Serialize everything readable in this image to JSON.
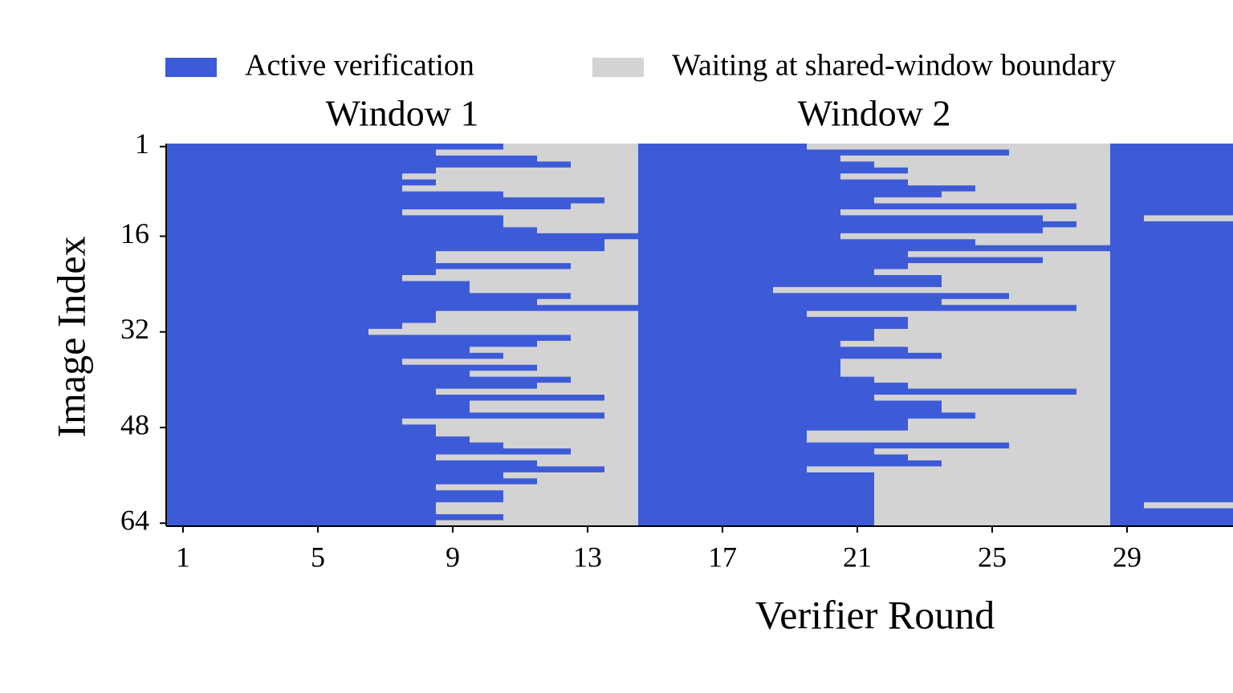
{
  "chart_data": {
    "type": "timeline",
    "xlabel": "Verifier Round",
    "ylabel": "Image Index",
    "xlim": [
      0.5,
      32.14
    ],
    "ylim": [
      0.5,
      64.5
    ],
    "xticks": [
      1,
      5,
      9,
      13,
      17,
      21,
      25,
      29
    ],
    "yticks": [
      1,
      16,
      32,
      48,
      64
    ],
    "series": [
      {
        "name": "Active verification",
        "color": "#3d5ad7"
      },
      {
        "name": "Waiting at shared-window boundary",
        "color": "#d3d3d3"
      }
    ],
    "windows": [
      {
        "label": "Window 1",
        "range": [
          1,
          14
        ],
        "active_end": [
          10,
          8,
          11,
          12,
          8,
          7,
          8,
          7,
          10,
          13,
          12,
          7,
          10,
          10,
          11,
          14,
          13,
          13,
          8,
          8,
          12,
          8,
          7,
          9,
          9,
          12,
          11,
          14,
          8,
          8,
          7,
          6,
          12,
          11,
          9,
          10,
          7,
          11,
          9,
          12,
          11,
          8,
          13,
          9,
          9,
          13,
          7,
          8,
          8,
          9,
          10,
          12,
          8,
          11,
          13,
          10,
          11,
          8,
          10,
          10,
          8,
          8,
          10,
          8
        ]
      },
      {
        "label": "Window 2",
        "range": [
          15,
          28
        ],
        "active_end": [
          19,
          25,
          20,
          21,
          22,
          20,
          22,
          24,
          23,
          21,
          27,
          20,
          26,
          27,
          26,
          20,
          24,
          28,
          22,
          26,
          22,
          21,
          23,
          23,
          18,
          25,
          23,
          27,
          19,
          22,
          22,
          21,
          21,
          20,
          22,
          23,
          20,
          20,
          20,
          21,
          22,
          27,
          21,
          23,
          23,
          24,
          22,
          22,
          19,
          19,
          25,
          21,
          22,
          23,
          19,
          21,
          21,
          21,
          21,
          21,
          21,
          21,
          21,
          21
        ]
      },
      {
        "range": [
          29,
          32
        ],
        "active_end": [
          32,
          32,
          32,
          32,
          32,
          32,
          32,
          32,
          32,
          32,
          32,
          32,
          29,
          32,
          32,
          32,
          32,
          32,
          32,
          32,
          32,
          32,
          32,
          32,
          32,
          32,
          32,
          32,
          32,
          32,
          32,
          32,
          32,
          32,
          32,
          32,
          32,
          32,
          32,
          32,
          32,
          32,
          32,
          32,
          32,
          32,
          32,
          32,
          32,
          32,
          32,
          32,
          32,
          32,
          32,
          32,
          32,
          32,
          32,
          32,
          29,
          32,
          32,
          32
        ]
      }
    ]
  }
}
